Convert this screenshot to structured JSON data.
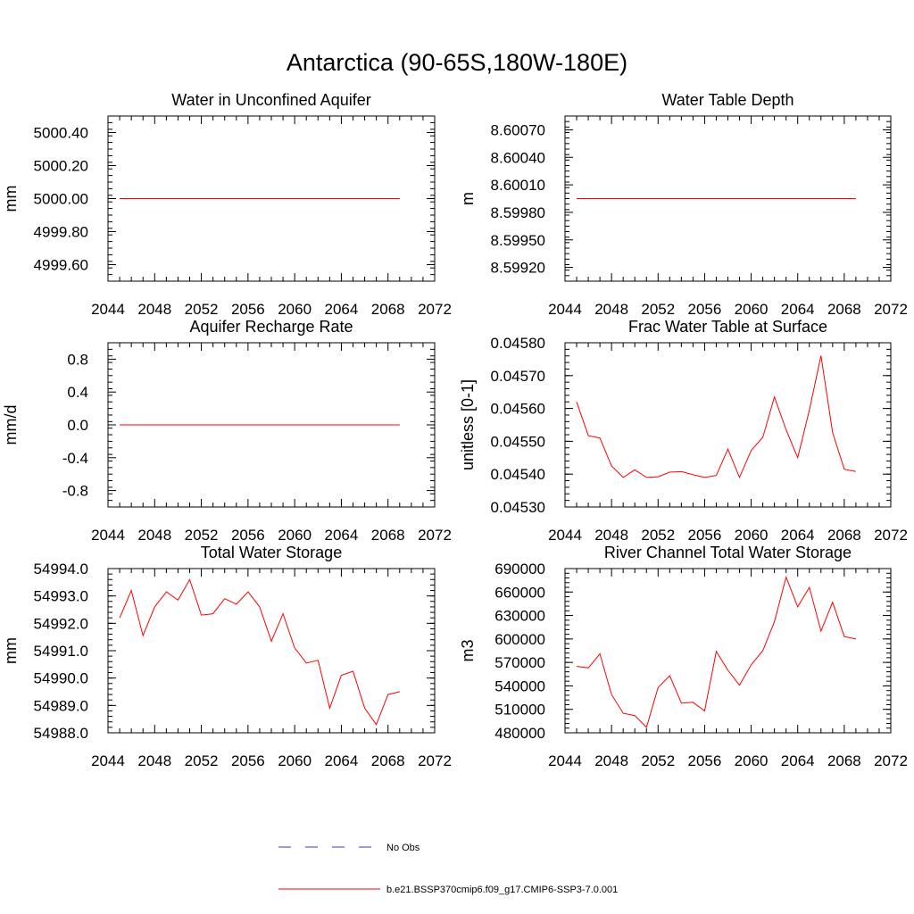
{
  "title": "Antarctica (90-65S,180W-180E)",
  "colors": {
    "model": "#ff0000",
    "obs": "#3a3aa8",
    "axis": "#000000"
  },
  "legend": [
    {
      "label": "No Obs",
      "style": "dashed",
      "color": "#3a3aa8"
    },
    {
      "label": "b.e21.BSSP370cmip6.f09_g17.CMIP6-SSP3-7.0.001",
      "style": "solid",
      "color": "#ff0000"
    }
  ],
  "chart_data": [
    {
      "type": "line",
      "title": "Water in Unconfined Aquifer",
      "ylabel": "mm",
      "xlim": [
        2044,
        2072
      ],
      "ylim": [
        4999.5,
        5000.5
      ],
      "xticks": [
        "2044",
        "2048",
        "2052",
        "2056",
        "2060",
        "2064",
        "2068",
        "2072"
      ],
      "yticks": [
        "4999.60",
        "4999.80",
        "5000.00",
        "5000.20",
        "5000.40"
      ],
      "x": [
        2045,
        2046,
        2047,
        2048,
        2049,
        2050,
        2051,
        2052,
        2053,
        2054,
        2055,
        2056,
        2057,
        2058,
        2059,
        2060,
        2061,
        2062,
        2063,
        2064,
        2065,
        2066,
        2067,
        2068,
        2069
      ],
      "series": [
        {
          "values": [
            5000.0,
            5000.0,
            5000.0,
            5000.0,
            5000.0,
            5000.0,
            5000.0,
            5000.0,
            5000.0,
            5000.0,
            5000.0,
            5000.0,
            5000.0,
            5000.0,
            5000.0,
            5000.0,
            5000.0,
            5000.0,
            5000.0,
            5000.0,
            5000.0,
            5000.0,
            5000.0,
            5000.0,
            5000.0
          ]
        }
      ]
    },
    {
      "type": "line",
      "title": "Water Table Depth",
      "ylabel": "m",
      "xlim": [
        2044,
        2072
      ],
      "ylim": [
        8.59905,
        8.60085
      ],
      "xticks": [
        "2044",
        "2048",
        "2052",
        "2056",
        "2060",
        "2064",
        "2068",
        "2072"
      ],
      "yticks": [
        "8.59920",
        "8.59950",
        "8.59980",
        "8.60010",
        "8.60040",
        "8.60070"
      ],
      "x": [
        2045,
        2046,
        2047,
        2048,
        2049,
        2050,
        2051,
        2052,
        2053,
        2054,
        2055,
        2056,
        2057,
        2058,
        2059,
        2060,
        2061,
        2062,
        2063,
        2064,
        2065,
        2066,
        2067,
        2068,
        2069
      ],
      "series": [
        {
          "values": [
            8.59995,
            8.59995,
            8.59995,
            8.59995,
            8.59995,
            8.59995,
            8.59995,
            8.59995,
            8.59995,
            8.59995,
            8.59995,
            8.59995,
            8.59995,
            8.59995,
            8.59995,
            8.59995,
            8.59995,
            8.59995,
            8.59995,
            8.59995,
            8.59995,
            8.59995,
            8.59995,
            8.59995,
            8.59995
          ]
        }
      ]
    },
    {
      "type": "line",
      "title": "Aquifer Recharge Rate",
      "ylabel": "mm/d",
      "xlim": [
        2044,
        2072
      ],
      "ylim": [
        -1.0,
        1.0
      ],
      "xticks": [
        "2044",
        "2048",
        "2052",
        "2056",
        "2060",
        "2064",
        "2068",
        "2072"
      ],
      "yticks": [
        "-0.8",
        "-0.4",
        "0.0",
        "0.4",
        "0.8"
      ],
      "x": [
        2045,
        2046,
        2047,
        2048,
        2049,
        2050,
        2051,
        2052,
        2053,
        2054,
        2055,
        2056,
        2057,
        2058,
        2059,
        2060,
        2061,
        2062,
        2063,
        2064,
        2065,
        2066,
        2067,
        2068,
        2069
      ],
      "series": [
        {
          "values": [
            0,
            0,
            0,
            0,
            0,
            0,
            0,
            0,
            0,
            0,
            0,
            0,
            0,
            0,
            0,
            0,
            0,
            0,
            0,
            0,
            0,
            0,
            0,
            0,
            0
          ]
        }
      ]
    },
    {
      "type": "line",
      "title": "Frac Water Table at Surface",
      "ylabel": "unitless [0-1]",
      "xlim": [
        2044,
        2072
      ],
      "ylim": [
        0.0453,
        0.0458
      ],
      "xticks": [
        "2044",
        "2048",
        "2052",
        "2056",
        "2060",
        "2064",
        "2068",
        "2072"
      ],
      "yticks": [
        "0.04530",
        "0.04540",
        "0.04550",
        "0.04560",
        "0.04570",
        "0.04580"
      ],
      "x": [
        2045,
        2046,
        2047,
        2048,
        2049,
        2050,
        2051,
        2052,
        2053,
        2054,
        2055,
        2056,
        2057,
        2058,
        2059,
        2060,
        2061,
        2062,
        2063,
        2064,
        2065,
        2066,
        2067,
        2068,
        2069
      ],
      "series": [
        {
          "values": [
            0.04562,
            0.045517,
            0.04551,
            0.045425,
            0.04539,
            0.045413,
            0.04539,
            0.045392,
            0.045406,
            0.045408,
            0.045398,
            0.04539,
            0.045396,
            0.045476,
            0.04539,
            0.045472,
            0.045512,
            0.045635,
            0.045535,
            0.04545,
            0.045595,
            0.045761,
            0.045527,
            0.045415,
            0.045408
          ]
        }
      ]
    },
    {
      "type": "line",
      "title": "Total Water Storage",
      "ylabel": "mm",
      "xlim": [
        2044,
        2072
      ],
      "ylim": [
        54988.0,
        54994.0
      ],
      "xticks": [
        "2044",
        "2048",
        "2052",
        "2056",
        "2060",
        "2064",
        "2068",
        "2072"
      ],
      "yticks": [
        "54988.0",
        "54989.0",
        "54990.0",
        "54991.0",
        "54992.0",
        "54993.0",
        "54994.0"
      ],
      "x": [
        2045,
        2046,
        2047,
        2048,
        2049,
        2050,
        2051,
        2052,
        2053,
        2054,
        2055,
        2056,
        2057,
        2058,
        2059,
        2060,
        2061,
        2062,
        2063,
        2064,
        2065,
        2066,
        2067,
        2068,
        2069
      ],
      "series": [
        {
          "values": [
            54992.2,
            54993.2,
            54991.55,
            54992.6,
            54993.15,
            54992.85,
            54993.6,
            54992.3,
            54992.35,
            54992.9,
            54992.7,
            54993.15,
            54992.6,
            54991.35,
            54992.35,
            54991.1,
            54990.55,
            54990.65,
            54988.9,
            54990.1,
            54990.25,
            54988.9,
            54988.3,
            54989.4,
            54989.5
          ]
        }
      ]
    },
    {
      "type": "line",
      "title": "River Channel Total Water Storage",
      "ylabel": "m3",
      "xlim": [
        2044,
        2072
      ],
      "ylim": [
        480000,
        690000
      ],
      "xticks": [
        "2044",
        "2048",
        "2052",
        "2056",
        "2060",
        "2064",
        "2068",
        "2072"
      ],
      "yticks": [
        "480000",
        "510000",
        "540000",
        "570000",
        "600000",
        "630000",
        "660000",
        "690000"
      ],
      "x": [
        2045,
        2046,
        2047,
        2048,
        2049,
        2050,
        2051,
        2052,
        2053,
        2054,
        2055,
        2056,
        2057,
        2058,
        2059,
        2060,
        2061,
        2062,
        2063,
        2064,
        2065,
        2066,
        2067,
        2068,
        2069
      ],
      "series": [
        {
          "values": [
            565000,
            563000,
            581000,
            529000,
            505000,
            502000,
            487000,
            538000,
            553000,
            518000,
            519000,
            508000,
            584000,
            560000,
            541000,
            567000,
            585000,
            622000,
            679000,
            641000,
            666000,
            610000,
            647000,
            603000,
            600000
          ]
        }
      ]
    }
  ]
}
